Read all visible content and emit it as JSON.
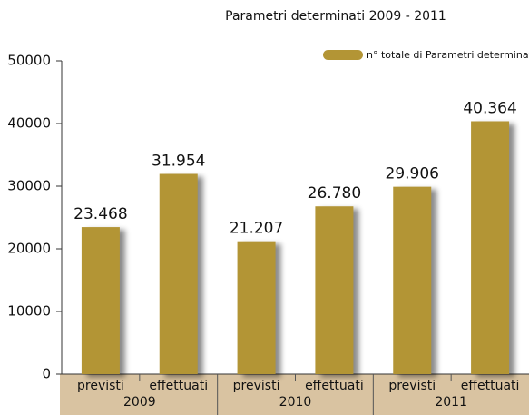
{
  "chart_data": {
    "type": "bar",
    "title": "Parametri determinati 2009 - 2011",
    "categories": [
      "previsti",
      "effettuati",
      "previsti",
      "effettuati",
      "previsti",
      "effettuati"
    ],
    "groups": [
      "2009",
      "2010",
      "2011"
    ],
    "series": [
      {
        "name": "n° totale di Parametri determinat",
        "color": "#b39535",
        "values": [
          23468,
          31954,
          21207,
          26780,
          29906,
          40364
        ],
        "value_labels": [
          "23.468",
          "31.954",
          "21.207",
          "26.780",
          "29.906",
          "40.364"
        ]
      }
    ],
    "ylim": [
      0,
      50000
    ],
    "yticks": [
      0,
      10000,
      20000,
      30000,
      40000,
      50000
    ],
    "legend": "top-right"
  }
}
